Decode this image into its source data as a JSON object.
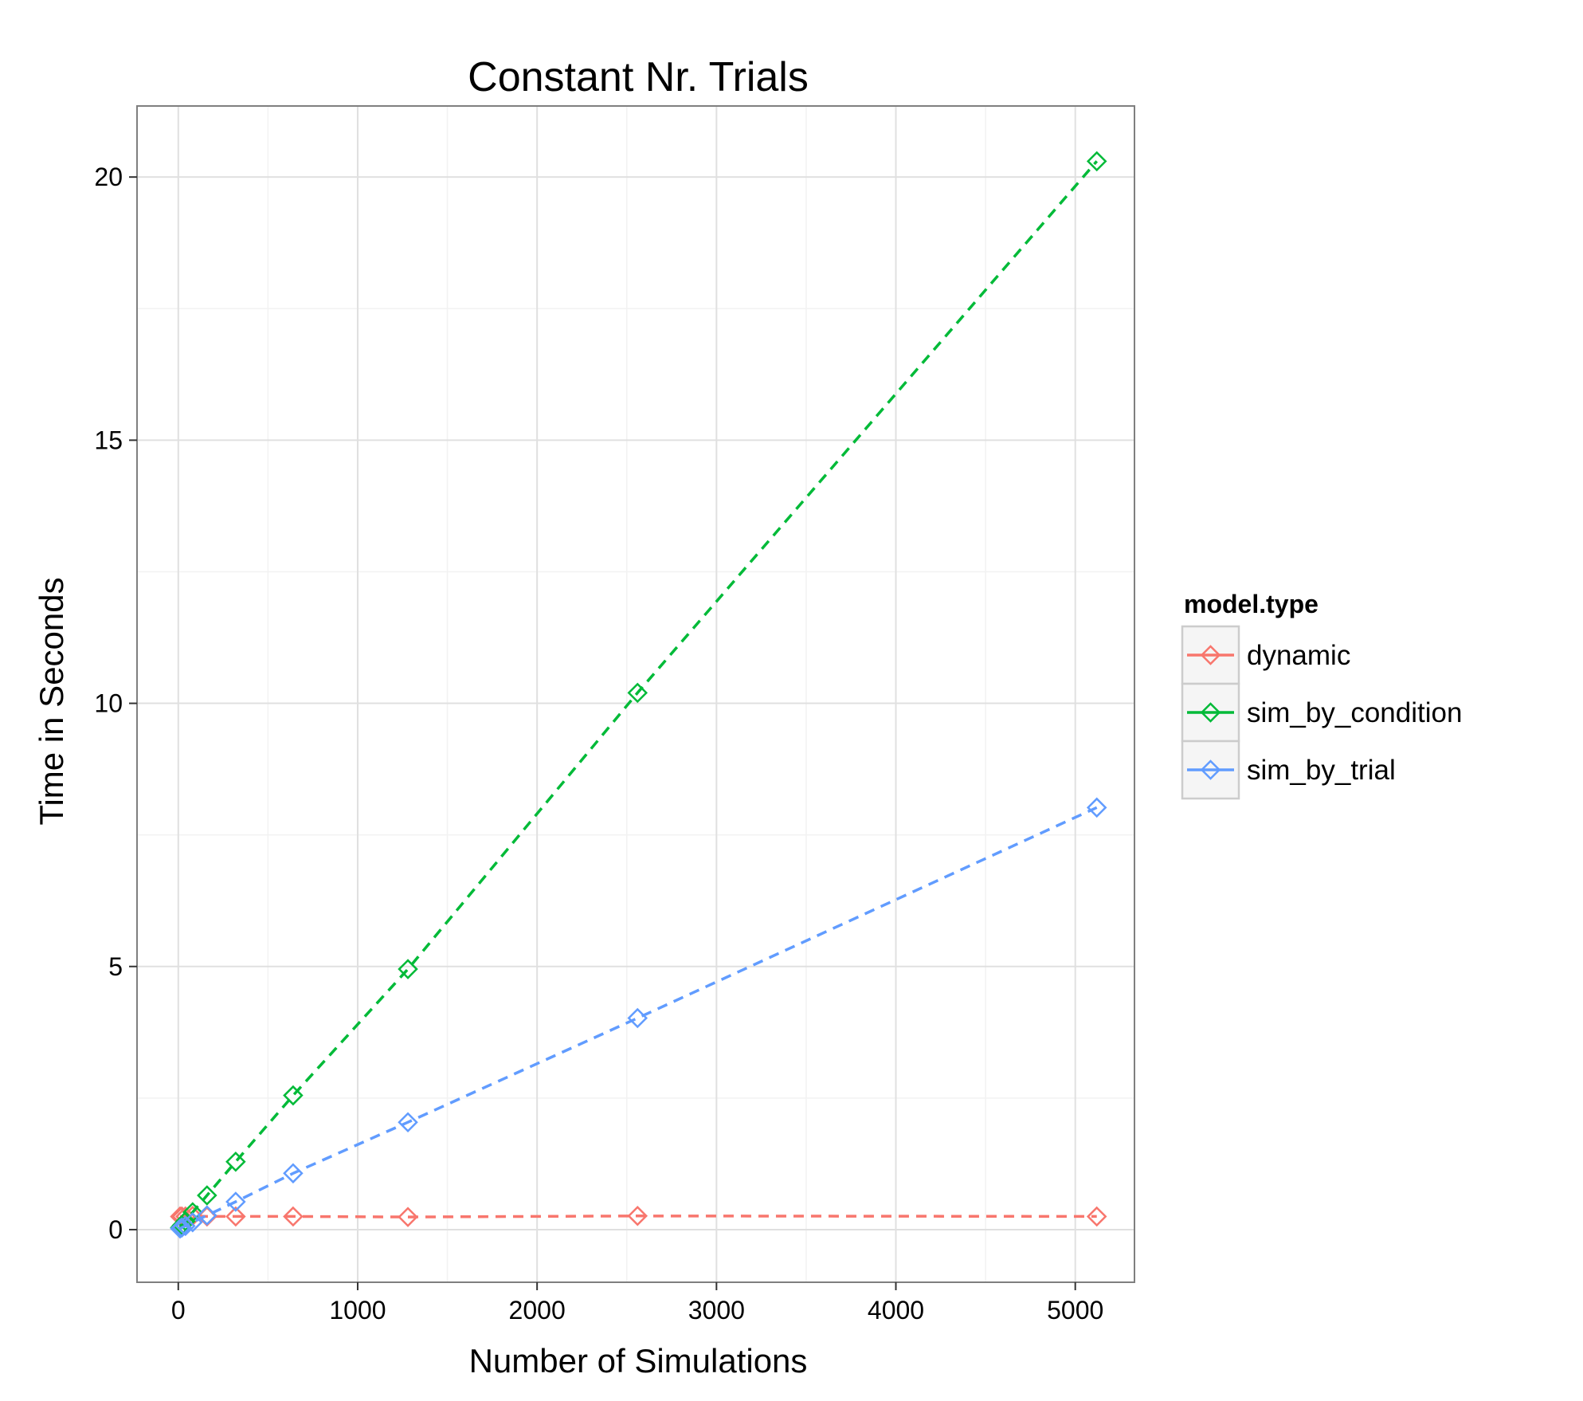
{
  "chart_data": {
    "type": "line",
    "title": "Constant Nr. Trials",
    "xlabel": "Number of Simulations",
    "ylabel": "Time in Seconds",
    "xlim": [
      -230,
      5330
    ],
    "ylim": [
      -1.0,
      21.35
    ],
    "x_ticks": [
      0,
      1000,
      2000,
      3000,
      4000,
      5000
    ],
    "x_tick_labels": [
      "0",
      "1000",
      "2000",
      "3000",
      "4000",
      "5000"
    ],
    "y_ticks": [
      0,
      5,
      10,
      15,
      20
    ],
    "y_tick_labels": [
      "0",
      "5",
      "10",
      "15",
      "20"
    ],
    "grid": true,
    "legend": {
      "title": "model.type",
      "position": "right"
    },
    "x": [
      10,
      20,
      40,
      80,
      160,
      320,
      640,
      1280,
      2560,
      5120
    ],
    "series": [
      {
        "name": "dynamic",
        "color": "#F8766D",
        "line_style": "dashed",
        "marker": "diamond-open",
        "values": [
          0.25,
          0.25,
          0.25,
          0.26,
          0.25,
          0.25,
          0.25,
          0.24,
          0.26,
          0.25
        ]
      },
      {
        "name": "sim_by_condition",
        "color": "#00BA38",
        "line_style": "dashed",
        "marker": "diamond-open",
        "values": [
          0.04,
          0.08,
          0.16,
          0.33,
          0.65,
          1.29,
          2.55,
          4.95,
          10.2,
          20.3
        ]
      },
      {
        "name": "sim_by_trial",
        "color": "#619CFF",
        "line_style": "dashed",
        "marker": "diamond-open",
        "values": [
          0.02,
          0.04,
          0.07,
          0.14,
          0.27,
          0.53,
          1.07,
          2.04,
          4.02,
          8.02
        ]
      }
    ]
  }
}
